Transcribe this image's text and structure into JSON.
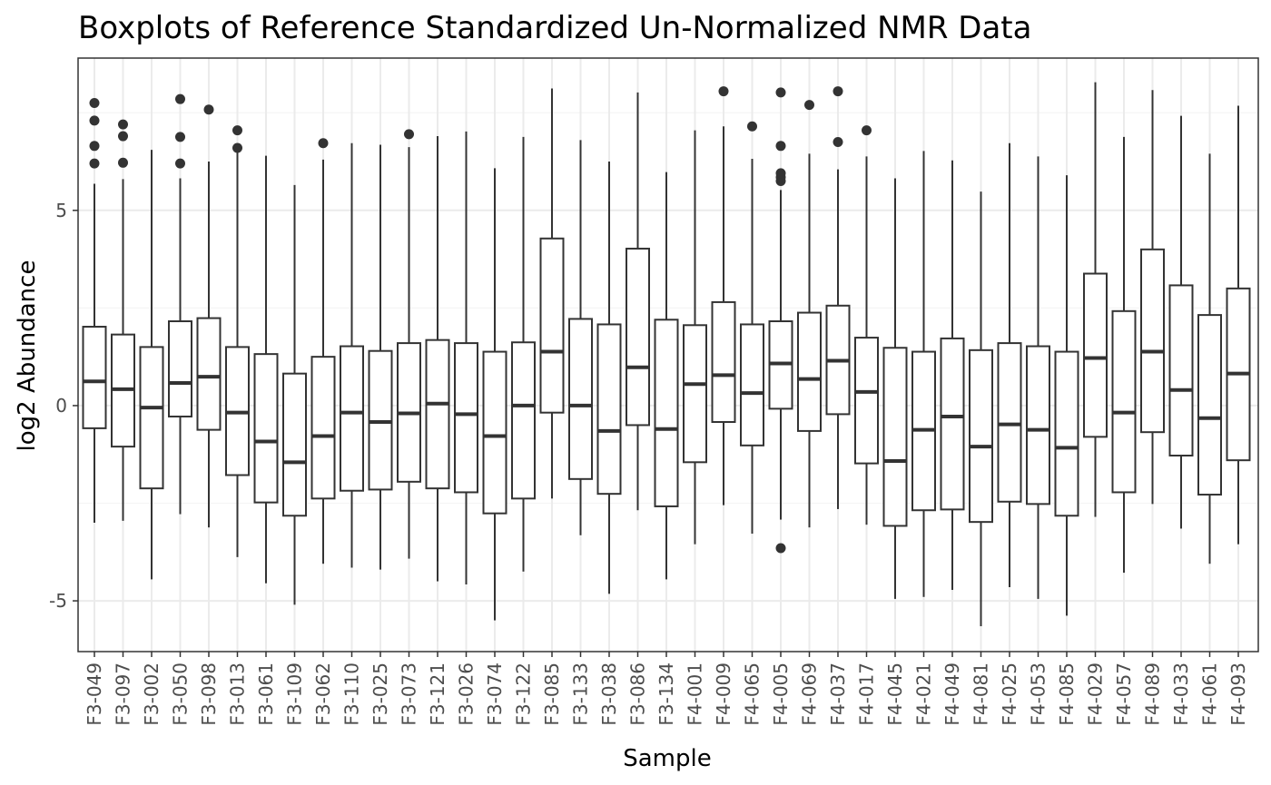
{
  "chart_data": {
    "type": "boxplot",
    "title": "Boxplots of Reference Standardized Un-Normalized NMR Data",
    "xlabel": "Sample",
    "ylabel": "log2 Abundance",
    "ylim": [
      -6.3,
      8.9
    ],
    "yticks": [
      -5,
      0,
      5
    ],
    "grid": true,
    "theme": "bw",
    "colors": {
      "box_stroke": "#333333",
      "box_fill": "#ffffff",
      "grid_major": "#ebebeb",
      "grid_minor": "#f5f5f5",
      "panel_border": "#333333"
    },
    "categories": [
      "F3-049",
      "F3-097",
      "F3-002",
      "F3-050",
      "F3-098",
      "F3-013",
      "F3-061",
      "F3-109",
      "F3-062",
      "F3-110",
      "F3-025",
      "F3-073",
      "F3-121",
      "F3-026",
      "F3-074",
      "F3-122",
      "F3-085",
      "F3-133",
      "F3-038",
      "F3-086",
      "F3-134",
      "F4-001",
      "F4-009",
      "F4-065",
      "F4-005",
      "F4-069",
      "F4-037",
      "F4-017",
      "F4-045",
      "F4-021",
      "F4-049",
      "F4-081",
      "F4-025",
      "F4-053",
      "F4-085",
      "F4-029",
      "F4-057",
      "F4-089",
      "F4-033",
      "F4-061",
      "F4-093"
    ],
    "boxes": [
      {
        "min": -3.0,
        "q1": -0.58,
        "median": 0.62,
        "q3": 2.02,
        "max": 5.68,
        "outliers": [
          6.2,
          6.65,
          7.3,
          7.75
        ]
      },
      {
        "min": -2.95,
        "q1": -1.05,
        "median": 0.42,
        "q3": 1.82,
        "max": 5.8,
        "outliers": [
          6.22,
          6.9,
          7.2
        ]
      },
      {
        "min": -4.45,
        "q1": -2.12,
        "median": -0.05,
        "q3": 1.5,
        "max": 6.55,
        "outliers": []
      },
      {
        "min": -2.78,
        "q1": -0.28,
        "median": 0.58,
        "q3": 2.16,
        "max": 5.82,
        "outliers": [
          6.2,
          6.88,
          7.85
        ]
      },
      {
        "min": -3.12,
        "q1": -0.62,
        "median": 0.74,
        "q3": 2.24,
        "max": 6.25,
        "outliers": [
          7.58
        ]
      },
      {
        "min": -3.88,
        "q1": -1.78,
        "median": -0.18,
        "q3": 1.5,
        "max": 6.52,
        "outliers": [
          6.6,
          7.05
        ]
      },
      {
        "min": -4.55,
        "q1": -2.48,
        "median": -0.92,
        "q3": 1.32,
        "max": 6.4,
        "outliers": []
      },
      {
        "min": -5.1,
        "q1": -2.82,
        "median": -1.45,
        "q3": 0.82,
        "max": 5.65,
        "outliers": []
      },
      {
        "min": -4.05,
        "q1": -2.38,
        "median": -0.78,
        "q3": 1.25,
        "max": 6.3,
        "outliers": [
          6.72
        ]
      },
      {
        "min": -4.15,
        "q1": -2.18,
        "median": -0.18,
        "q3": 1.52,
        "max": 6.72,
        "outliers": []
      },
      {
        "min": -4.2,
        "q1": -2.15,
        "median": -0.42,
        "q3": 1.4,
        "max": 6.68,
        "outliers": []
      },
      {
        "min": -3.92,
        "q1": -1.95,
        "median": -0.2,
        "q3": 1.6,
        "max": 6.62,
        "outliers": [
          6.95
        ]
      },
      {
        "min": -4.5,
        "q1": -2.12,
        "median": 0.05,
        "q3": 1.68,
        "max": 6.9,
        "outliers": []
      },
      {
        "min": -4.58,
        "q1": -2.22,
        "median": -0.22,
        "q3": 1.6,
        "max": 7.02,
        "outliers": []
      },
      {
        "min": -5.5,
        "q1": -2.76,
        "median": -0.78,
        "q3": 1.38,
        "max": 6.08,
        "outliers": []
      },
      {
        "min": -4.25,
        "q1": -2.38,
        "median": 0.0,
        "q3": 1.62,
        "max": 6.88,
        "outliers": []
      },
      {
        "min": -2.38,
        "q1": -0.18,
        "median": 1.38,
        "q3": 4.28,
        "max": 8.12,
        "outliers": []
      },
      {
        "min": -3.32,
        "q1": -1.88,
        "median": 0.0,
        "q3": 2.22,
        "max": 6.8,
        "outliers": []
      },
      {
        "min": -4.82,
        "q1": -2.26,
        "median": -0.65,
        "q3": 2.08,
        "max": 6.25,
        "outliers": []
      },
      {
        "min": -2.68,
        "q1": -0.5,
        "median": 0.98,
        "q3": 4.02,
        "max": 8.02,
        "outliers": []
      },
      {
        "min": -4.45,
        "q1": -2.58,
        "median": -0.6,
        "q3": 2.2,
        "max": 5.98,
        "outliers": []
      },
      {
        "min": -3.55,
        "q1": -1.45,
        "median": 0.55,
        "q3": 2.06,
        "max": 7.05,
        "outliers": []
      },
      {
        "min": -2.55,
        "q1": -0.42,
        "median": 0.78,
        "q3": 2.65,
        "max": 7.15,
        "outliers": [
          8.05
        ]
      },
      {
        "min": -3.28,
        "q1": -1.02,
        "median": 0.32,
        "q3": 2.08,
        "max": 6.32,
        "outliers": [
          7.15
        ]
      },
      {
        "min": -2.92,
        "q1": -0.08,
        "median": 1.08,
        "q3": 2.16,
        "max": 5.52,
        "outliers": [
          -3.65,
          5.75,
          5.85,
          5.95,
          6.65,
          8.02
        ]
      },
      {
        "min": -3.12,
        "q1": -0.65,
        "median": 0.68,
        "q3": 2.38,
        "max": 6.45,
        "outliers": [
          7.7
        ]
      },
      {
        "min": -2.65,
        "q1": -0.22,
        "median": 1.15,
        "q3": 2.56,
        "max": 6.05,
        "outliers": [
          6.75,
          8.05
        ]
      },
      {
        "min": -3.05,
        "q1": -1.48,
        "median": 0.35,
        "q3": 1.74,
        "max": 6.38,
        "outliers": [
          7.05
        ]
      },
      {
        "min": -4.95,
        "q1": -3.08,
        "median": -1.42,
        "q3": 1.48,
        "max": 5.82,
        "outliers": []
      },
      {
        "min": -4.9,
        "q1": -2.68,
        "median": -0.62,
        "q3": 1.38,
        "max": 6.52,
        "outliers": []
      },
      {
        "min": -4.72,
        "q1": -2.66,
        "median": -0.28,
        "q3": 1.72,
        "max": 6.28,
        "outliers": []
      },
      {
        "min": -5.65,
        "q1": -2.98,
        "median": -1.05,
        "q3": 1.42,
        "max": 5.48,
        "outliers": []
      },
      {
        "min": -4.65,
        "q1": -2.46,
        "median": -0.48,
        "q3": 1.6,
        "max": 6.72,
        "outliers": []
      },
      {
        "min": -4.95,
        "q1": -2.52,
        "median": -0.62,
        "q3": 1.52,
        "max": 6.38,
        "outliers": []
      },
      {
        "min": -5.38,
        "q1": -2.82,
        "median": -1.08,
        "q3": 1.38,
        "max": 5.9,
        "outliers": []
      },
      {
        "min": -2.85,
        "q1": -0.8,
        "median": 1.22,
        "q3": 3.38,
        "max": 8.28,
        "outliers": []
      },
      {
        "min": -4.28,
        "q1": -2.22,
        "median": -0.18,
        "q3": 2.42,
        "max": 6.88,
        "outliers": []
      },
      {
        "min": -2.52,
        "q1": -0.68,
        "median": 1.38,
        "q3": 4.0,
        "max": 8.08,
        "outliers": []
      },
      {
        "min": -3.15,
        "q1": -1.28,
        "median": 0.4,
        "q3": 3.08,
        "max": 7.42,
        "outliers": []
      },
      {
        "min": -4.05,
        "q1": -2.28,
        "median": -0.32,
        "q3": 2.32,
        "max": 6.45,
        "outliers": []
      },
      {
        "min": -3.55,
        "q1": -1.4,
        "median": 0.82,
        "q3": 3.0,
        "max": 7.68,
        "outliers": []
      }
    ]
  }
}
